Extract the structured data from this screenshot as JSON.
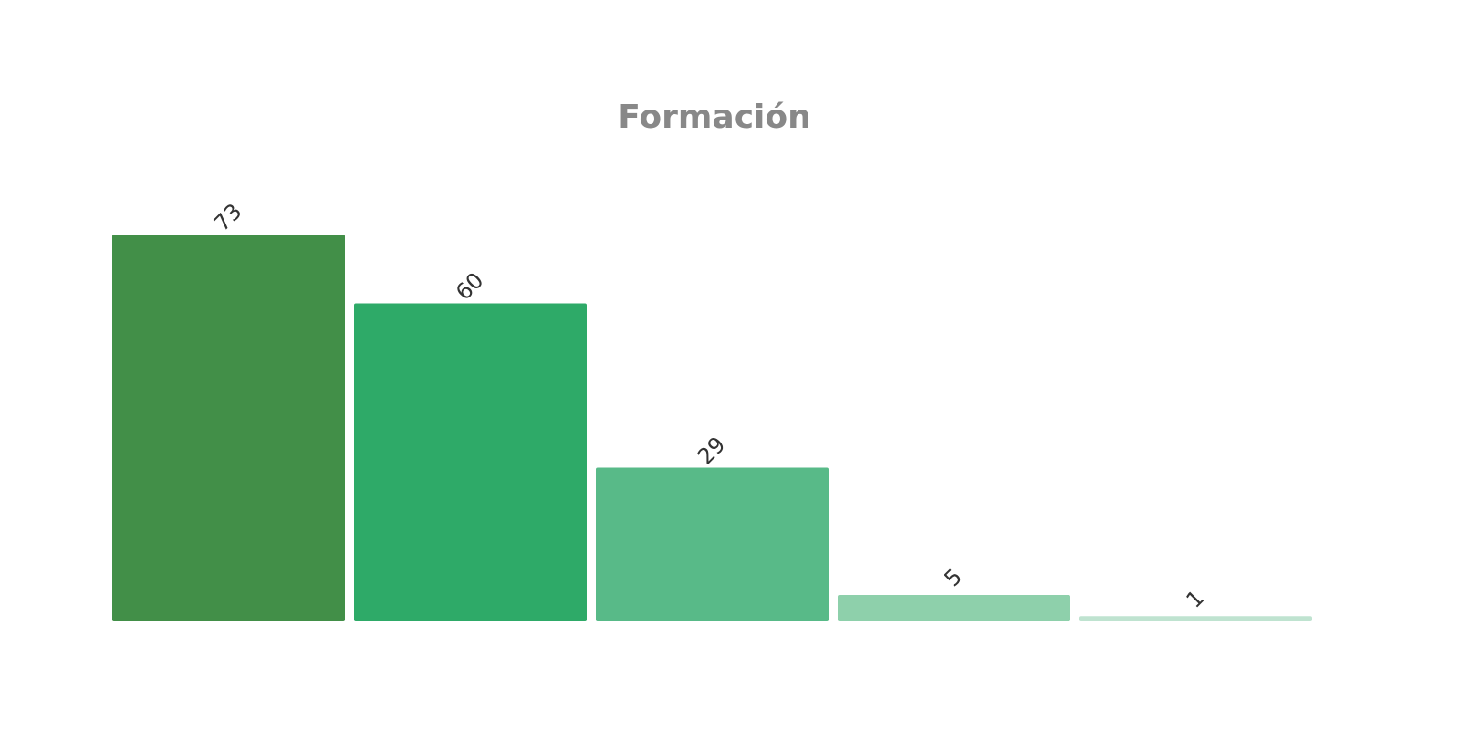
{
  "chart_data": {
    "type": "bar",
    "title": "Formación",
    "categories": [
      null,
      null,
      null,
      null,
      null
    ],
    "values": [
      73,
      60,
      29,
      5,
      1
    ],
    "colors": [
      "#428f48",
      "#2eaa68",
      "#58ba88",
      "#8ed0ab",
      "#bfe3d0"
    ]
  }
}
